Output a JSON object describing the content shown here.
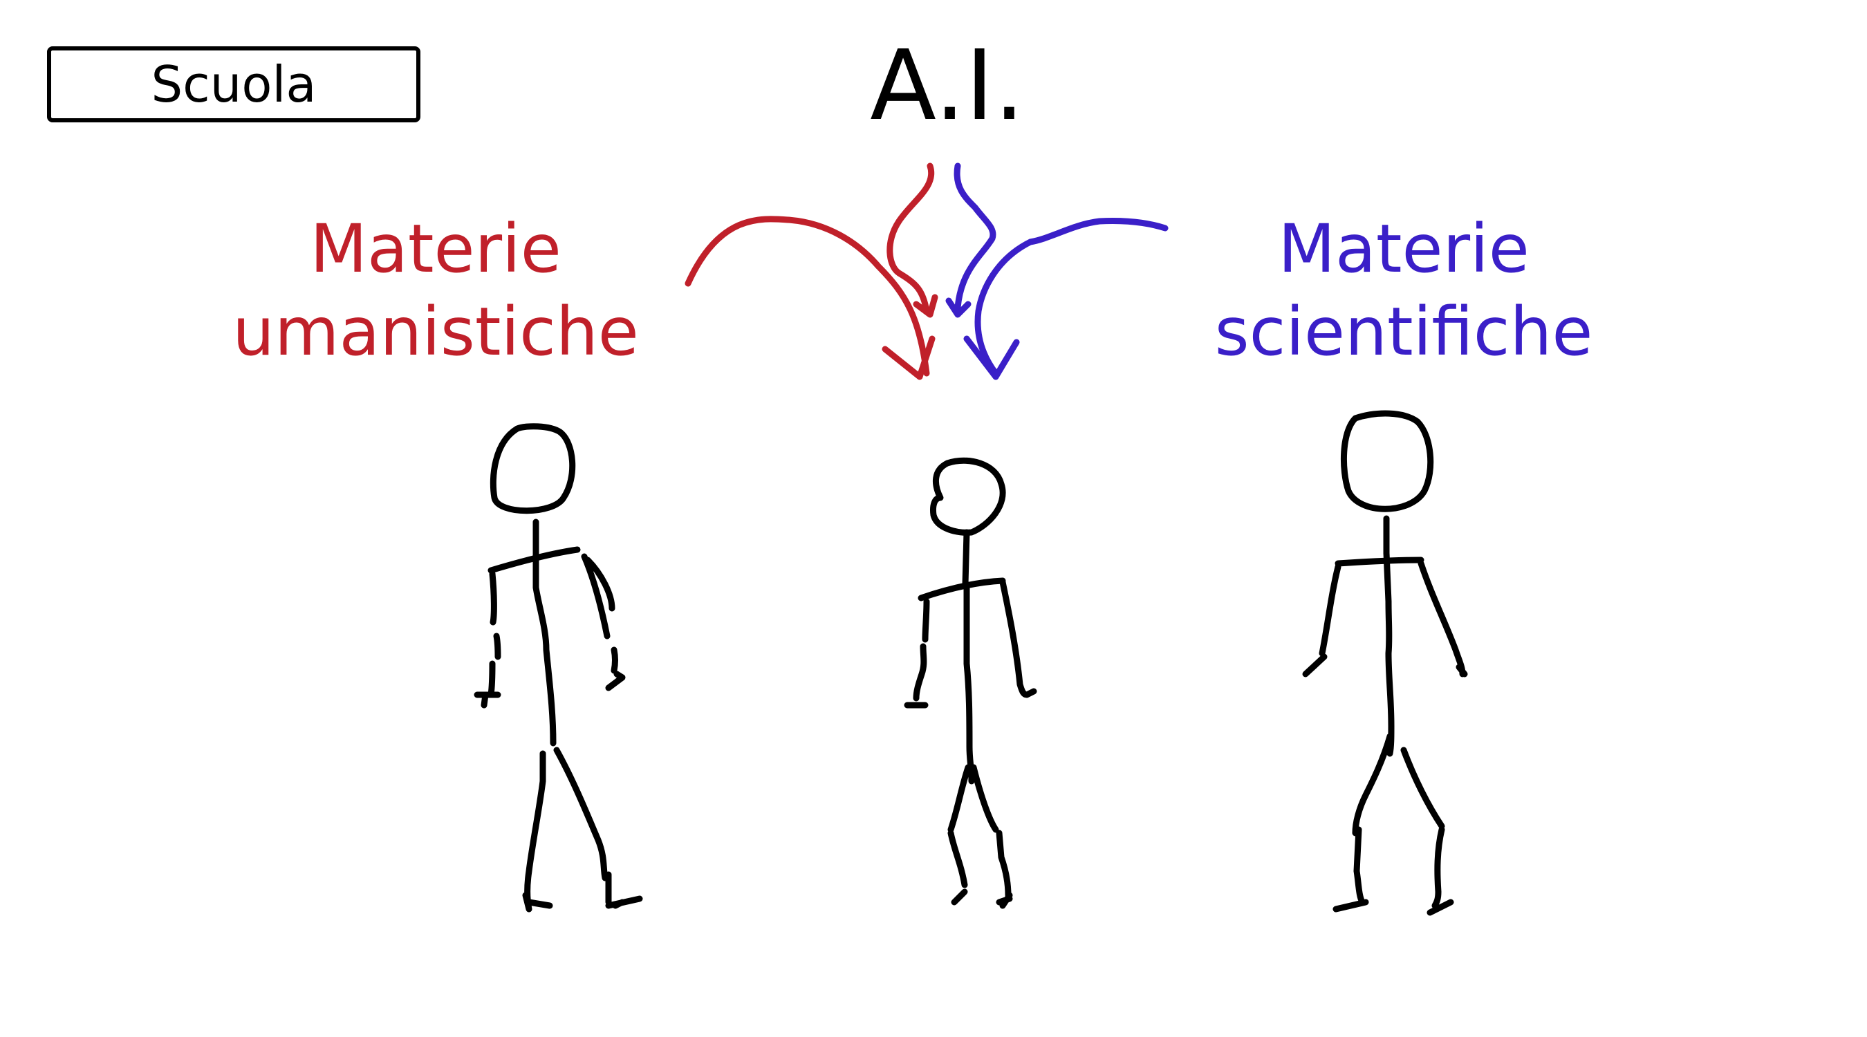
{
  "school_label": "Scuola",
  "title": "A.I.",
  "humanities": {
    "line1": "Materie",
    "line2": "umanistiche"
  },
  "sciences": {
    "line1": "Materie",
    "line2": "scientifiche"
  },
  "colors": {
    "humanities": "#c0202a",
    "sciences": "#3a1fc8",
    "ink": "#000000"
  }
}
